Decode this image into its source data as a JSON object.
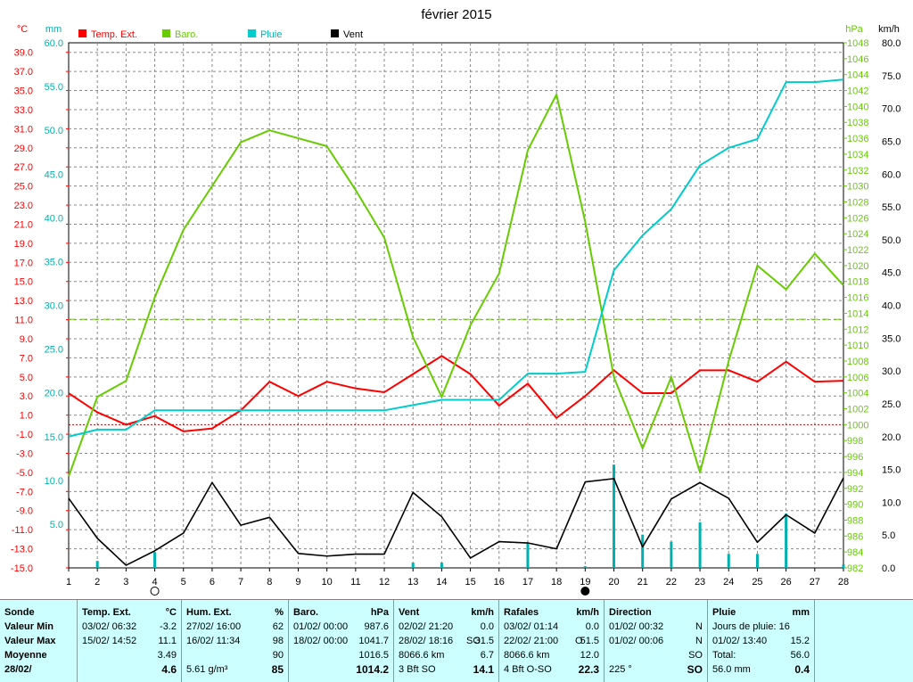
{
  "chart_data": {
    "type": "line",
    "title": "février 2015",
    "x": [
      1,
      2,
      3,
      4,
      5,
      6,
      7,
      8,
      9,
      10,
      11,
      12,
      13,
      14,
      15,
      16,
      17,
      18,
      19,
      20,
      21,
      22,
      23,
      24,
      25,
      26,
      27,
      28
    ],
    "axes": {
      "temp": {
        "unit": "°C",
        "min": -15,
        "max": 40,
        "ticks": [
          -15,
          -13,
          -11,
          -9,
          -7,
          -5,
          -3,
          -1,
          1,
          3,
          5,
          7,
          9,
          11,
          13,
          15,
          17,
          19,
          21,
          23,
          25,
          27,
          29,
          31,
          33,
          35,
          37,
          39
        ],
        "color": "#ff0000"
      },
      "rain": {
        "unit": "mm",
        "min": 0,
        "max": 60,
        "ticks": [
          5,
          10,
          15,
          20,
          25,
          30,
          35,
          40,
          45,
          50,
          55,
          60
        ],
        "color": "#00b0b0"
      },
      "baro": {
        "unit": "hPa",
        "min": 982,
        "max": 1048,
        "ticks": [
          982,
          984,
          986,
          988,
          990,
          992,
          994,
          996,
          998,
          1000,
          1002,
          1004,
          1006,
          1008,
          1010,
          1012,
          1014,
          1016,
          1018,
          1020,
          1022,
          1024,
          1026,
          1028,
          1030,
          1032,
          1034,
          1036,
          1038,
          1040,
          1042,
          1044,
          1046,
          1048
        ],
        "color": "#66cc00"
      },
      "wind": {
        "unit": "km/h",
        "min": 0,
        "max": 80,
        "ticks": [
          0,
          5,
          10,
          15,
          20,
          25,
          30,
          35,
          40,
          45,
          50,
          55,
          60,
          65,
          70,
          75,
          80
        ],
        "color": "#000000"
      }
    },
    "legend": [
      {
        "label": "Temp. Ext.",
        "color": "#ff0000"
      },
      {
        "label": "Baro.",
        "color": "#66cc00"
      },
      {
        "label": "Pluie",
        "color": "#00cccc"
      },
      {
        "label": "Vent",
        "color": "#000000"
      }
    ],
    "series": [
      {
        "name": "Temp. Ext.",
        "axis": "temp",
        "color": "#ff0000",
        "values": [
          3.3,
          1.3,
          0.0,
          0.9,
          -0.7,
          -0.4,
          1.5,
          4.5,
          3.0,
          4.5,
          3.8,
          3.4,
          5.3,
          7.2,
          5.3,
          2.0,
          4.3,
          0.7,
          3.0,
          5.7,
          3.3,
          3.3,
          5.7,
          5.7,
          4.5,
          6.6,
          4.5,
          4.6
        ]
      },
      {
        "name": "Baro.",
        "axis": "baro",
        "color": "#66cc00",
        "values": [
          993.5,
          1003.5,
          1005.5,
          1016.0,
          1024.5,
          1030.0,
          1035.5,
          1037.0,
          1036.0,
          1035.0,
          1029.5,
          1023.5,
          1011.0,
          1003.5,
          1012.5,
          1019.0,
          1034.5,
          1041.5,
          1025.5,
          1006.0,
          997.0,
          1006.0,
          994.0,
          1008.0,
          1020.0,
          1017.0,
          1021.5,
          1017.5
        ]
      },
      {
        "name": "Pluie",
        "axis": "rain",
        "color": "#00cccc",
        "values": [
          15.0,
          15.8,
          15.8,
          18.0,
          18.0,
          18.0,
          18.0,
          18.0,
          18.0,
          18.0,
          18.0,
          18.0,
          18.6,
          19.2,
          19.2,
          19.2,
          22.2,
          22.2,
          22.4,
          34.0,
          38.0,
          41.0,
          46.0,
          48.0,
          49.0,
          55.5,
          55.5,
          55.8
        ]
      },
      {
        "name": "Vent",
        "axis": "wind",
        "color": "#000000",
        "values": [
          10.6,
          4.5,
          0.4,
          2.6,
          5.3,
          13.0,
          6.5,
          7.7,
          2.2,
          1.8,
          2.1,
          2.1,
          11.5,
          7.8,
          1.5,
          4.0,
          3.8,
          2.9,
          13.1,
          13.6,
          3.2,
          10.5,
          13.0,
          10.6,
          3.9,
          8.1,
          5.3,
          13.7
        ]
      },
      {
        "name": "rain-bars",
        "axis": "rain",
        "color": "#00b0b0",
        "values": [
          0.0,
          0.8,
          0.0,
          1.8,
          0.0,
          0.0,
          0.0,
          0.0,
          0.0,
          0.0,
          0.0,
          0.0,
          0.6,
          0.6,
          0.0,
          0.0,
          2.8,
          0.0,
          0.2,
          11.8,
          3.8,
          3.0,
          5.2,
          1.6,
          1.6,
          6.2,
          0.0,
          0.4
        ]
      }
    ],
    "reference_lines": [
      {
        "axis": "temp",
        "value": 0,
        "color": "#cc0000",
        "style": "dotted"
      },
      {
        "axis": "baro",
        "value": 1013.25,
        "color": "#66cc00",
        "style": "dashed"
      }
    ],
    "markers": [
      {
        "x": 4,
        "symbol": "new-moon-outline"
      },
      {
        "x": 19,
        "symbol": "full-moon-filled"
      }
    ],
    "grid": true
  },
  "stats": {
    "sonde": {
      "header": "Sonde",
      "rows": [
        "Valeur Min",
        "Valeur Max",
        "Moyenne"
      ],
      "date": "28/02/"
    },
    "temp": {
      "header": "Temp. Ext.",
      "unit": "°C",
      "min_date": "03/02/  06:32",
      "min_val": "-3.2",
      "max_date": "15/02/  14:52",
      "max_val": "11.1",
      "avg": "3.49",
      "current": "4.6"
    },
    "hum": {
      "header": "Hum. Ext.",
      "unit": "%",
      "min_date": "27/02/  16:00",
      "min_val": "62",
      "max_date": "16/02/  11:34",
      "max_val": "98",
      "avg": "90",
      "abs": "5.61 g/m³",
      "current": "85"
    },
    "baro": {
      "header": "Baro.",
      "unit": "hPa",
      "min_date": "01/02/  00:00",
      "min_val": "987.6",
      "max_date": "18/02/  00:00",
      "max_val": "1041.7",
      "avg": "1016.5",
      "current": "1014.2"
    },
    "vent": {
      "header": "Vent",
      "unit": "km/h",
      "min_date": "02/02/  21:20",
      "min_val": "0.0",
      "max_date": "28/02/  18:16",
      "max_dir": "SO",
      "max_val": "31.5",
      "dist": "8066.6 km",
      "avg": "6.7",
      "bft": "3 Bft SO",
      "current": "14.1"
    },
    "rafales": {
      "header": "Rafales",
      "unit": "km/h",
      "min_date": "03/02/  01:14",
      "min_val": "0.0",
      "max_date": "22/02/  21:00",
      "max_dir": "O",
      "max_val": "51.5",
      "dist": "8066.6 km",
      "avg": "12.0",
      "bft": "4 Bft O-SO",
      "current": "22.3"
    },
    "direction": {
      "header": "Direction",
      "min_date": "01/02/  00:32",
      "min_val": "N",
      "max_date": "01/02/  00:06",
      "max_val": "N",
      "avg": "SO",
      "deg": "225 °",
      "current": "SO"
    },
    "pluie": {
      "header": "Pluie",
      "unit": "mm",
      "days": "Jours de pluie: 16",
      "max_date": "01/02/  13:40",
      "max_val": "15.2",
      "total_label": "Total:",
      "total_val": "56.0",
      "current_total": "56.0 mm",
      "current": "0.4"
    }
  }
}
